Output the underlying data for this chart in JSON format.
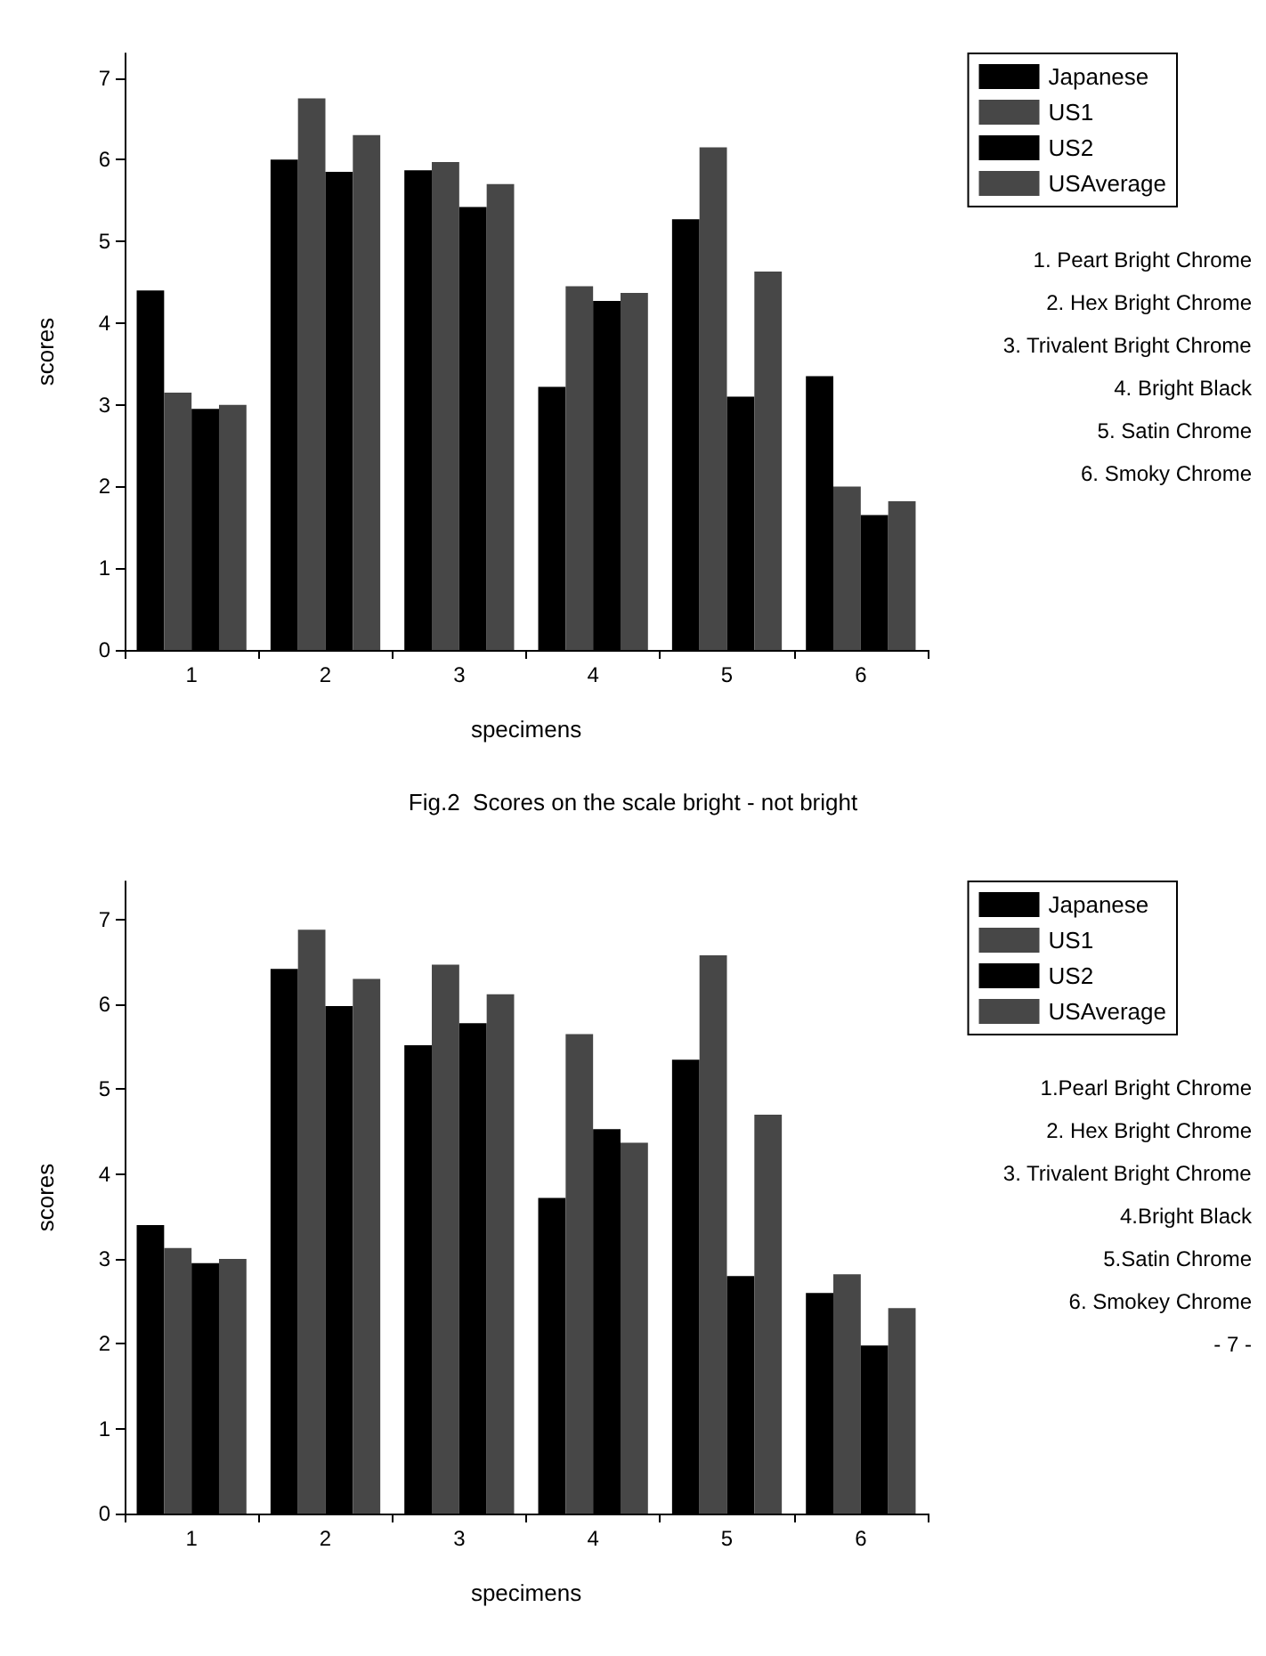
{
  "chart_data": [
    {
      "type": "bar",
      "title": "Fig.2  Scores on the scale bright - not bright",
      "xlabel": "specimens",
      "ylabel": "scores",
      "categories": [
        "1",
        "2",
        "3",
        "4",
        "5",
        "6"
      ],
      "series": [
        {
          "name": "Japanese",
          "color": "#000000",
          "values": [
            4.4,
            6.0,
            5.87,
            3.22,
            5.27,
            3.35
          ]
        },
        {
          "name": "US1",
          "color": "#474747",
          "values": [
            3.15,
            6.75,
            5.97,
            4.45,
            6.15,
            2.0
          ]
        },
        {
          "name": "US2",
          "color": "#000000",
          "values": [
            2.95,
            5.85,
            5.42,
            4.27,
            3.1,
            1.65
          ]
        },
        {
          "name": "USAverage",
          "color": "#474747",
          "values": [
            3.0,
            6.3,
            5.7,
            4.37,
            4.63,
            1.82
          ]
        }
      ],
      "ylim": [
        0,
        7.3
      ],
      "yticks": [
        0,
        1,
        2,
        3,
        4,
        5,
        6,
        7
      ],
      "legend": "top right",
      "annotations": [
        "1. Peart Bright Chrome",
        "2. Hex Bright Chrome",
        "3. Trivalent Bright Chrome",
        "4. Bright Black",
        "5. Satin Chrome",
        "6. Smoky Chrome"
      ]
    },
    {
      "type": "bar",
      "xlabel": "specimens",
      "ylabel": "scores",
      "categories": [
        "1",
        "2",
        "3",
        "4",
        "5",
        "6"
      ],
      "series": [
        {
          "name": "Japanese",
          "color": "#000000",
          "values": [
            3.4,
            6.42,
            5.52,
            3.72,
            5.35,
            2.6
          ]
        },
        {
          "name": "US1",
          "color": "#474747",
          "values": [
            3.13,
            6.88,
            6.47,
            5.65,
            6.58,
            2.82
          ]
        },
        {
          "name": "US2",
          "color": "#000000",
          "values": [
            2.95,
            5.98,
            5.78,
            4.53,
            2.8,
            1.98
          ]
        },
        {
          "name": "USAverage",
          "color": "#474747",
          "values": [
            3.0,
            6.3,
            6.12,
            4.37,
            4.7,
            2.42
          ]
        }
      ],
      "ylim": [
        0,
        7.45
      ],
      "yticks": [
        0,
        1,
        2,
        3,
        4,
        5,
        6,
        7
      ],
      "legend": "top right",
      "annotations": [
        "1.Pearl Bright Chrome",
        "2. Hex Bright Chrome",
        "3. Trivalent Bright Chrome",
        "4.Bright Black",
        "5.Satin Chrome",
        "6. Smokey Chrome",
        "- 7 -"
      ]
    }
  ]
}
